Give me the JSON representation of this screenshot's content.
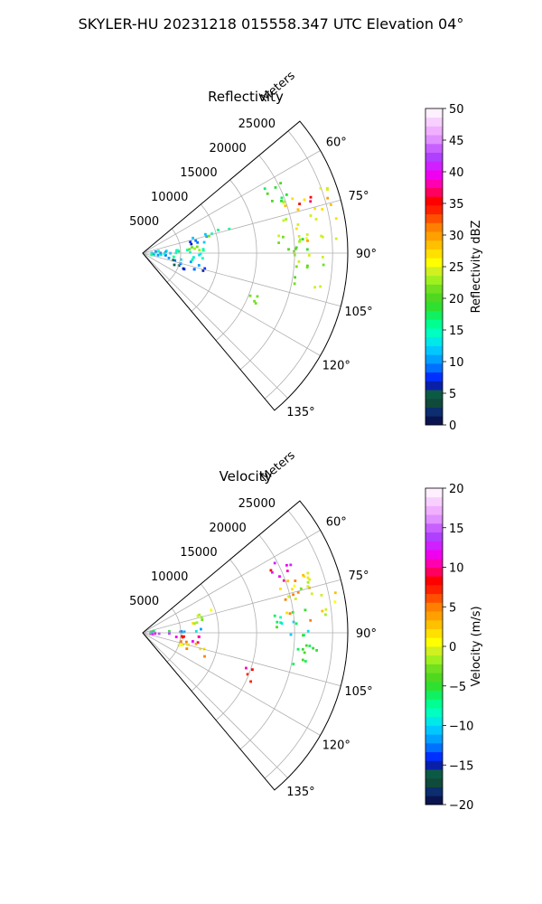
{
  "figure": {
    "suptitle": "SKYLER-HU  20231218  015558.347 UTC Elevation 04°"
  },
  "chart_data": [
    {
      "type": "heatmap",
      "projection": "polar-sector",
      "title": "Reflectivity",
      "radial_label": "Meters",
      "radial_ticks": [
        5000,
        10000,
        15000,
        20000,
        25000
      ],
      "radial_tick_labels": [
        "5000",
        "10000",
        "15000",
        "20000",
        "25000"
      ],
      "rmax": 27000,
      "theta_range_deg": [
        50,
        140
      ],
      "theta_ticks_deg": [
        60,
        75,
        90,
        105,
        120,
        135
      ],
      "theta_tick_labels": [
        "60°",
        "75°",
        "90°",
        "105°",
        "120°",
        "135°"
      ],
      "grid": true,
      "colorbar": {
        "label": "Reflectivity dBZ",
        "vmin": 0,
        "vmax": 50,
        "ticks": [
          0,
          5,
          10,
          15,
          20,
          25,
          30,
          35,
          40,
          45,
          50
        ],
        "tick_labels": [
          "0",
          "5",
          "10",
          "15",
          "20",
          "25",
          "30",
          "35",
          "40",
          "45",
          "50"
        ],
        "colors": [
          "#0a1550",
          "#0c2d6e",
          "#104a3a",
          "#0c5a44",
          "#0a1fa8",
          "#0030ff",
          "#0070ff",
          "#00a0ff",
          "#00c8ff",
          "#00e8e8",
          "#00ffc0",
          "#00ff90",
          "#10f060",
          "#30e030",
          "#50d820",
          "#70e020",
          "#a0f020",
          "#d0f020",
          "#ffff00",
          "#ffe000",
          "#ffc000",
          "#ffa000",
          "#ff8000",
          "#ff5000",
          "#ff2000",
          "#ff0000",
          "#ff0060",
          "#ff00b0",
          "#f000f0",
          "#d020ff",
          "#b040ff",
          "#c860ff",
          "#e090ff",
          "#f0b0ff",
          "#f8d0ff",
          "#fff0ff"
        ]
      },
      "echo_regions": [
        {
          "range": [
            1000,
            4000
          ],
          "theta": [
            80,
            102
          ],
          "value": 12
        },
        {
          "range": [
            4000,
            8000
          ],
          "theta": [
            85,
            100
          ],
          "value": 14
        },
        {
          "range": [
            4000,
            8500
          ],
          "theta": [
            100,
            112
          ],
          "value": 8
        },
        {
          "range": [
            6000,
            9500
          ],
          "theta": [
            71,
            80
          ],
          "value": 10
        },
        {
          "range": [
            5000,
            8000
          ],
          "theta": [
            80,
            88
          ],
          "value": 20
        },
        {
          "range": [
            9000,
            12000
          ],
          "theta": [
            72,
            78
          ],
          "value": 18
        },
        {
          "range": [
            14000,
            16500
          ],
          "theta": [
            108,
            115
          ],
          "value": 20
        },
        {
          "range": [
            17000,
            22000
          ],
          "theta": [
            82,
            92
          ],
          "value": 22
        },
        {
          "range": [
            19000,
            26000
          ],
          "theta": [
            70,
            86
          ],
          "value": 26
        },
        {
          "range": [
            21500,
            24000
          ],
          "theta": [
            71,
            76
          ],
          "value": 36
        },
        {
          "range": [
            18000,
            22000
          ],
          "theta": [
            62,
            70
          ],
          "value": 20
        },
        {
          "range": [
            20000,
            24000
          ],
          "theta": [
            90,
            102
          ],
          "value": 21
        }
      ]
    },
    {
      "type": "heatmap",
      "projection": "polar-sector",
      "title": "Velocity",
      "radial_label": "Meters",
      "radial_ticks": [
        5000,
        10000,
        15000,
        20000,
        25000
      ],
      "radial_tick_labels": [
        "5000",
        "10000",
        "15000",
        "20000",
        "25000"
      ],
      "rmax": 27000,
      "theta_range_deg": [
        50,
        140
      ],
      "theta_ticks_deg": [
        60,
        75,
        90,
        105,
        120,
        135
      ],
      "theta_tick_labels": [
        "60°",
        "75°",
        "90°",
        "105°",
        "120°",
        "135°"
      ],
      "grid": true,
      "colorbar": {
        "label": "Velocity (m/s)",
        "vmin": -20,
        "vmax": 20,
        "ticks": [
          -20,
          -15,
          -10,
          -5,
          0,
          5,
          10,
          15,
          20
        ],
        "tick_labels": [
          "−20",
          "−15",
          "−10",
          "−5",
          "0",
          "5",
          "10",
          "15",
          "20"
        ],
        "colors": [
          "#0a1550",
          "#0c2d6e",
          "#104a3a",
          "#0c5a44",
          "#0a1fa8",
          "#0030ff",
          "#0070ff",
          "#00a0ff",
          "#00c8ff",
          "#00e8e8",
          "#00ffc0",
          "#00ff90",
          "#10f060",
          "#30e030",
          "#50d820",
          "#70e020",
          "#a0f020",
          "#d0f020",
          "#ffff00",
          "#ffe000",
          "#ffc000",
          "#ffa000",
          "#ff8000",
          "#ff5000",
          "#ff2000",
          "#ff0000",
          "#ff0060",
          "#ff00b0",
          "#f000f0",
          "#d020ff",
          "#b040ff",
          "#c860ff",
          "#e090ff",
          "#f0b0ff",
          "#f8d0ff",
          "#fff0ff"
        ]
      },
      "echo_regions": [
        {
          "range": [
            1000,
            4000
          ],
          "theta": [
            80,
            90
          ],
          "value": -8
        },
        {
          "range": [
            1000,
            4000
          ],
          "theta": [
            90,
            100
          ],
          "value": 14
        },
        {
          "range": [
            4000,
            8000
          ],
          "theta": [
            86,
            92
          ],
          "value": -12
        },
        {
          "range": [
            4000,
            8000
          ],
          "theta": [
            92,
            100
          ],
          "value": 10
        },
        {
          "range": [
            5000,
            9000
          ],
          "theta": [
            100,
            112
          ],
          "value": 2
        },
        {
          "range": [
            6000,
            9500
          ],
          "theta": [
            71,
            80
          ],
          "value": 0
        },
        {
          "range": [
            14000,
            16500
          ],
          "theta": [
            108,
            115
          ],
          "value": 10
        },
        {
          "range": [
            17000,
            22000
          ],
          "theta": [
            82,
            92
          ],
          "value": -7
        },
        {
          "range": [
            19000,
            26000
          ],
          "theta": [
            70,
            86
          ],
          "value": 2
        },
        {
          "range": [
            21500,
            24000
          ],
          "theta": [
            71,
            76
          ],
          "value": -2
        },
        {
          "range": [
            18000,
            22000
          ],
          "theta": [
            62,
            70
          ],
          "value": 12
        },
        {
          "range": [
            20000,
            24000
          ],
          "theta": [
            90,
            102
          ],
          "value": -5
        }
      ]
    }
  ]
}
